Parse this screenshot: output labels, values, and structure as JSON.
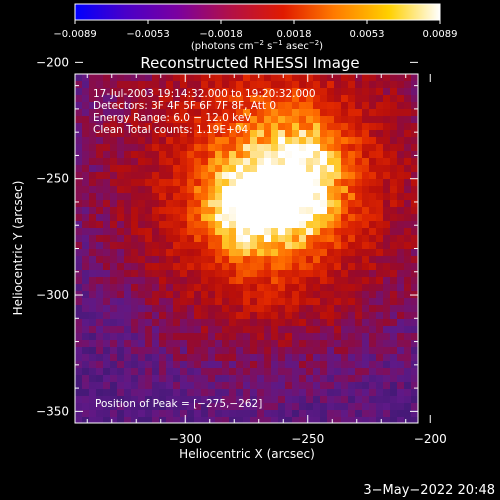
{
  "chart_data": {
    "type": "heatmap",
    "title": "Reconstructed RHESSI Image",
    "xlabel": "Heliocentric X (arcsec)",
    "ylabel": "Heliocentric Y (arcsec)",
    "xlim": [
      -345,
      -205
    ],
    "ylim": [
      -355,
      -205
    ],
    "xticks": [
      -300,
      -250,
      -200
    ],
    "xtick_labels": [
      "−300",
      "−250",
      "−200"
    ],
    "yticks": [
      -200,
      -250,
      -300,
      -350
    ],
    "ytick_labels": [
      "−200",
      "−250",
      "−300",
      "−350"
    ],
    "colorbar": {
      "colors": [
        "#0000ff",
        "#4a00c8",
        "#7a00a0",
        "#b0104a",
        "#e01a00",
        "#ff7a00",
        "#ffd000",
        "#ffffff"
      ],
      "tick_labels": [
        "−0.0089",
        "−0.0053",
        "−0.0018",
        "0.0018",
        "0.0053",
        "0.0089"
      ],
      "unit_text": "(photons cm",
      "unit_sup1": "−2",
      "unit_mid": " s",
      "unit_sup2": "−1",
      "unit_mid2": " asec",
      "unit_sup3": "−2",
      "unit_end": ")"
    },
    "info_lines": [
      "17-Jul-2003 19:14:32.000 to 19:20:32.000",
      "Detectors: 3F 4F 5F 6F 7F 8F, Att 0",
      "Energy Range: 6.0 − 12.0 keV",
      "Clean     Total counts: 1.19E+04"
    ],
    "peak_text": "Position of Peak = [−275,−262]",
    "peak": [
      -275,
      -262
    ],
    "grid": false
  },
  "footer": {
    "timestamp": "3−May−2022 20:48"
  }
}
